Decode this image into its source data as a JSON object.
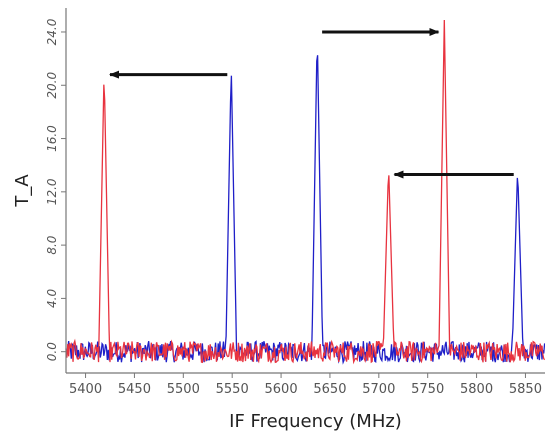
{
  "chart_data": {
    "type": "line",
    "title": "",
    "xlabel": "IF Frequency (MHz)",
    "ylabel": "T_A",
    "xlim": [
      5380,
      5870
    ],
    "ylim": [
      -1.6,
      25.8
    ],
    "x_ticks": [
      5400,
      5450,
      5500,
      5550,
      5600,
      5650,
      5700,
      5750,
      5800,
      5850
    ],
    "y_ticks": [
      0.0,
      4.0,
      8.0,
      12.0,
      16.0,
      20.0,
      24.0
    ],
    "x_tick_labels": [
      "5400",
      "5450",
      "5500",
      "5550",
      "5600",
      "5650",
      "5700",
      "5750",
      "5800",
      "5850"
    ],
    "y_tick_labels": [
      "0.0",
      "4.0",
      "8.0",
      "12.0",
      "16.0",
      "20.0",
      "24.0"
    ],
    "grid": false,
    "legend": "none",
    "noise_level": 0.8,
    "series": [
      {
        "color": "#1f1fc8",
        "peaks": [
          {
            "x": 5549,
            "y": 21.5
          },
          {
            "x": 5637,
            "y": 24.0
          },
          {
            "x": 5842,
            "y": 13.8
          }
        ]
      },
      {
        "color": "#e8333f",
        "peaks": [
          {
            "x": 5419,
            "y": 21.2
          },
          {
            "x": 5710,
            "y": 14.0
          },
          {
            "x": 5767,
            "y": 24.9
          }
        ]
      }
    ],
    "annotations": [
      {
        "type": "arrow",
        "from": [
          5545,
          20.8
        ],
        "to": [
          5425,
          20.8
        ]
      },
      {
        "type": "arrow",
        "from": [
          5642,
          24.0
        ],
        "to": [
          5761,
          24.0
        ]
      },
      {
        "type": "arrow",
        "from": [
          5838,
          13.3
        ],
        "to": [
          5716,
          13.3
        ]
      }
    ]
  }
}
